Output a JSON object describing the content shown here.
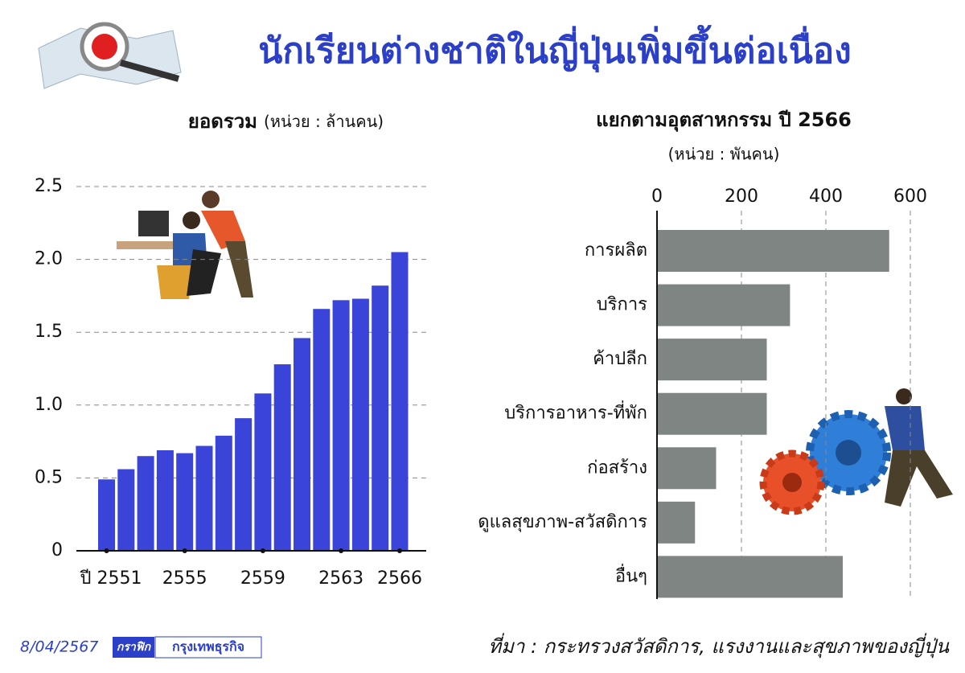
{
  "title": "นักเรียนต่างชาติในญี่ปุ่นเพิ่มขึ้นต่อเนื่อง",
  "date": "8/04/2567",
  "credit_label": "กราฟิก",
  "credit_name": "กรุงเทพธุรกิจ",
  "source": "ที่มา : กระทรวงสวัสดิการ, แรงงานและสุขภาพของญี่ปุ่น",
  "chart_data": [
    {
      "type": "bar",
      "title": "ยอดรวม",
      "subtitle": "(หน่วย : ล้านคน)",
      "categories": [
        "ปี 2551",
        null,
        null,
        null,
        "2555",
        null,
        null,
        null,
        "2559",
        null,
        null,
        null,
        "2563",
        null,
        null,
        "2566"
      ],
      "values": [
        0.49,
        0.56,
        0.65,
        0.69,
        0.67,
        0.72,
        0.79,
        0.91,
        1.08,
        1.28,
        1.46,
        1.66,
        1.72,
        1.73,
        1.82,
        2.05
      ],
      "color": "#3b44d8",
      "ylim": [
        0,
        2.5
      ],
      "yticks": [
        0,
        0.5,
        {
          "value": 1,
          "label": "1.0"
        },
        1.5,
        {
          "value": 2,
          "label": "2.0"
        },
        2.5
      ],
      "grid": true,
      "horizontal": false
    },
    {
      "type": "bar",
      "title": "แยกตามอุตสาหกรรม ปี 2566",
      "subtitle": "(หน่วย : พันคน)",
      "categories": [
        "การผลิต",
        "บริการ",
        "ค้าปลีก",
        "บริการอาหาร-ที่พัก",
        "ก่อสร้าง",
        "ดูแลสุขภาพ-สวัสดิการ",
        "อื่นๆ"
      ],
      "values": [
        550,
        315,
        260,
        260,
        140,
        90,
        440
      ],
      "color": "#7f8582",
      "xlim": [
        0,
        600
      ],
      "xticks": [
        0,
        200,
        400,
        600
      ],
      "grid": true,
      "horizontal": true
    }
  ]
}
